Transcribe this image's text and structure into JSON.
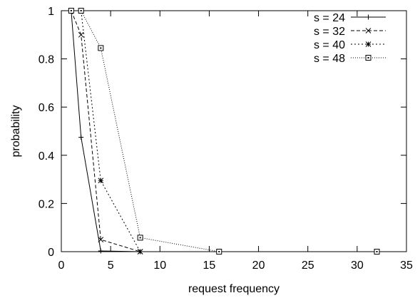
{
  "chart_data": {
    "type": "line",
    "xlabel": "request frequency",
    "ylabel": "probability",
    "xlim": [
      0,
      35
    ],
    "ylim": [
      0,
      1
    ],
    "xticks": [
      0,
      5,
      10,
      15,
      20,
      25,
      30,
      35
    ],
    "yticks": [
      0,
      0.2,
      0.4,
      0.6,
      0.8,
      1
    ],
    "xtick_labels": [
      "0",
      "5",
      "10",
      "15",
      "20",
      "25",
      "30",
      "35"
    ],
    "ytick_labels": [
      "0",
      "0.2",
      "0.4",
      "0.6",
      "0.8",
      "1"
    ],
    "grid": false,
    "legend_position": "top-right",
    "series": [
      {
        "name": "s = 24",
        "line_style": "solid",
        "marker": "plus",
        "x": [
          1,
          2,
          4,
          8,
          16,
          32
        ],
        "y": [
          1.0,
          0.475,
          0.003,
          0.0,
          0.0,
          0.0
        ]
      },
      {
        "name": "s = 32",
        "line_style": "dashed",
        "marker": "cross",
        "x": [
          1,
          2,
          4,
          8,
          16,
          32
        ],
        "y": [
          1.0,
          0.9,
          0.05,
          0.0,
          0.0,
          0.0
        ]
      },
      {
        "name": "s = 40",
        "line_style": "dotted",
        "marker": "star",
        "x": [
          1,
          2,
          4,
          8,
          16,
          32
        ],
        "y": [
          1.0,
          1.0,
          0.295,
          0.0,
          0.0,
          0.0
        ]
      },
      {
        "name": "s = 48",
        "line_style": "fine-dotted",
        "marker": "open-square",
        "x": [
          1,
          2,
          4,
          8,
          16,
          32
        ],
        "y": [
          1.0,
          1.0,
          0.845,
          0.058,
          0.0,
          0.0
        ]
      }
    ]
  }
}
